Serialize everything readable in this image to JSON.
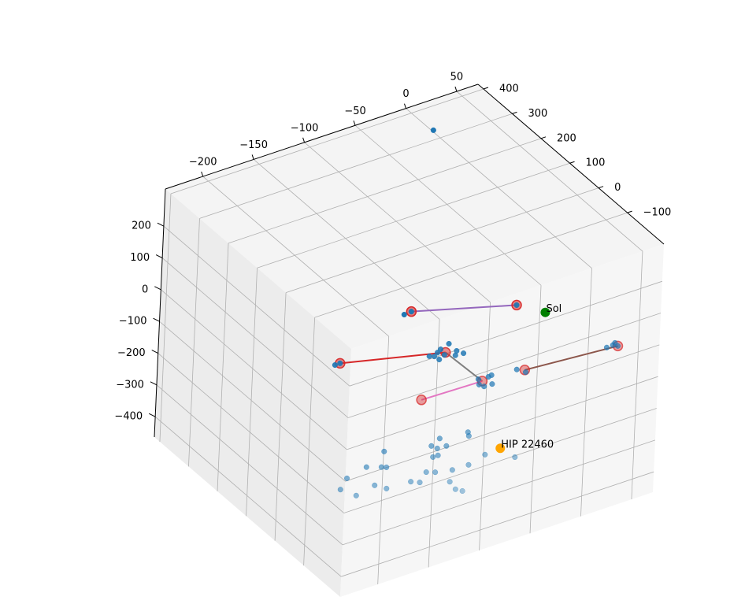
{
  "chart_data": {
    "type": "scatter3d",
    "xlim": [
      -237,
      71
    ],
    "ylim": [
      -227,
      419
    ],
    "zlim": [
      -464,
      317
    ],
    "xticks": [
      {
        "value": -200,
        "label": "−200"
      },
      {
        "value": -150,
        "label": "−150"
      },
      {
        "value": -100,
        "label": "−100"
      },
      {
        "value": -50,
        "label": "−50"
      },
      0,
      50
    ],
    "yticks": [
      400,
      300,
      200,
      100,
      0,
      {
        "value": -100,
        "label": "−100"
      }
    ],
    "zticks": [
      200,
      100,
      0,
      {
        "value": -100,
        "label": "−100"
      },
      {
        "value": -200,
        "label": "−200"
      },
      {
        "value": -300,
        "label": "−300"
      },
      {
        "value": -400,
        "label": "−400"
      }
    ],
    "grid": true,
    "series": [
      {
        "color": "#d62728",
        "x": [
          -140,
          -35,
          -209,
          -104,
          -66,
          -126,
          -24,
          68
        ],
        "y": [
          -98,
          -98,
          -98,
          -98,
          -98,
          -98,
          -98,
          -98
        ],
        "z": [
          230,
          138,
          141,
          63,
          -68,
          -63,
          -78,
          -101
        ]
      },
      {
        "color": "#1f77b4",
        "x": [
          -112,
          -109,
          -101,
          -115,
          -93,
          -86,
          -94,
          -120,
          -110,
          -105,
          -70,
          -60,
          -57,
          -56,
          -69,
          -64,
          -147,
          -214,
          57,
          63,
          65,
          -32,
          -23,
          -126,
          -78,
          -77,
          -106,
          -161,
          -114,
          -108,
          -99,
          -107,
          -112,
          -60,
          -76,
          -92,
          -30,
          -178,
          -163,
          -158,
          -197,
          -118,
          -109,
          -133,
          -124,
          -94,
          -169,
          -203,
          -157,
          -88,
          -81,
          -187,
          -140,
          -35,
          -209,
          68
        ],
        "y": [
          -98,
          -98,
          -98,
          -98,
          -98,
          -98,
          -98,
          -98,
          -98,
          -98,
          -98,
          -98,
          -98,
          -98,
          -98,
          -98,
          -98,
          -98,
          -98,
          -98,
          -98,
          -98,
          -98,
          -98,
          -98,
          -98,
          -98,
          -98,
          -98,
          -98,
          -98,
          -98,
          -98,
          -98,
          -98,
          -98,
          -98,
          -98,
          -98,
          -98,
          -98,
          -98,
          -98,
          -98,
          -98,
          -98,
          -98,
          -98,
          -98,
          -98,
          -98,
          -98,
          -98,
          -98,
          -98,
          -98
        ],
        "z": [
          71,
          78,
          87,
          62,
          56,
          41,
          43,
          68,
          47,
          56,
          -58,
          -61,
          -59,
          -88,
          -76,
          -87,
          228,
          141,
          -94,
          -93,
          -88,
          -68,
          -86,
          786,
          -216,
          -229,
          -206,
          -188,
          -221,
          -235,
          -237,
          -258,
          -258,
          -306,
          -321,
          -320,
          -346,
          -219,
          -235,
          -241,
          -234,
          -299,
          -309,
          -313,
          -325,
          -355,
          -286,
          -263,
          -309,
          -385,
          -398,
          -299,
          230,
          138,
          141,
          -101
        ]
      }
    ],
    "lines": [
      {
        "color": "#9467bd",
        "x": [
          -140,
          -35
        ],
        "y": [
          -98,
          -98
        ],
        "z": [
          230,
          138
        ]
      },
      {
        "color": "#d62728",
        "x": [
          -209,
          -104
        ],
        "y": [
          -98,
          -98
        ],
        "z": [
          141,
          63
        ]
      },
      {
        "color": "#7f7f7f",
        "x": [
          -104,
          -66
        ],
        "y": [
          -98,
          -98
        ],
        "z": [
          63,
          -68
        ]
      },
      {
        "color": "#e377c2",
        "x": [
          -126,
          -66
        ],
        "y": [
          -98,
          -98
        ],
        "z": [
          -63,
          -68
        ]
      },
      {
        "color": "#8c564b",
        "x": [
          -24,
          68
        ],
        "y": [
          -98,
          -98
        ],
        "z": [
          -78,
          -101
        ]
      }
    ],
    "annotations": [
      {
        "text": "Sol",
        "color": "green",
        "x": -6,
        "y": -98,
        "z": 84
      },
      {
        "text": "HIP 22460",
        "color": "orange",
        "x": -45,
        "y": -98,
        "z": -302
      }
    ]
  }
}
